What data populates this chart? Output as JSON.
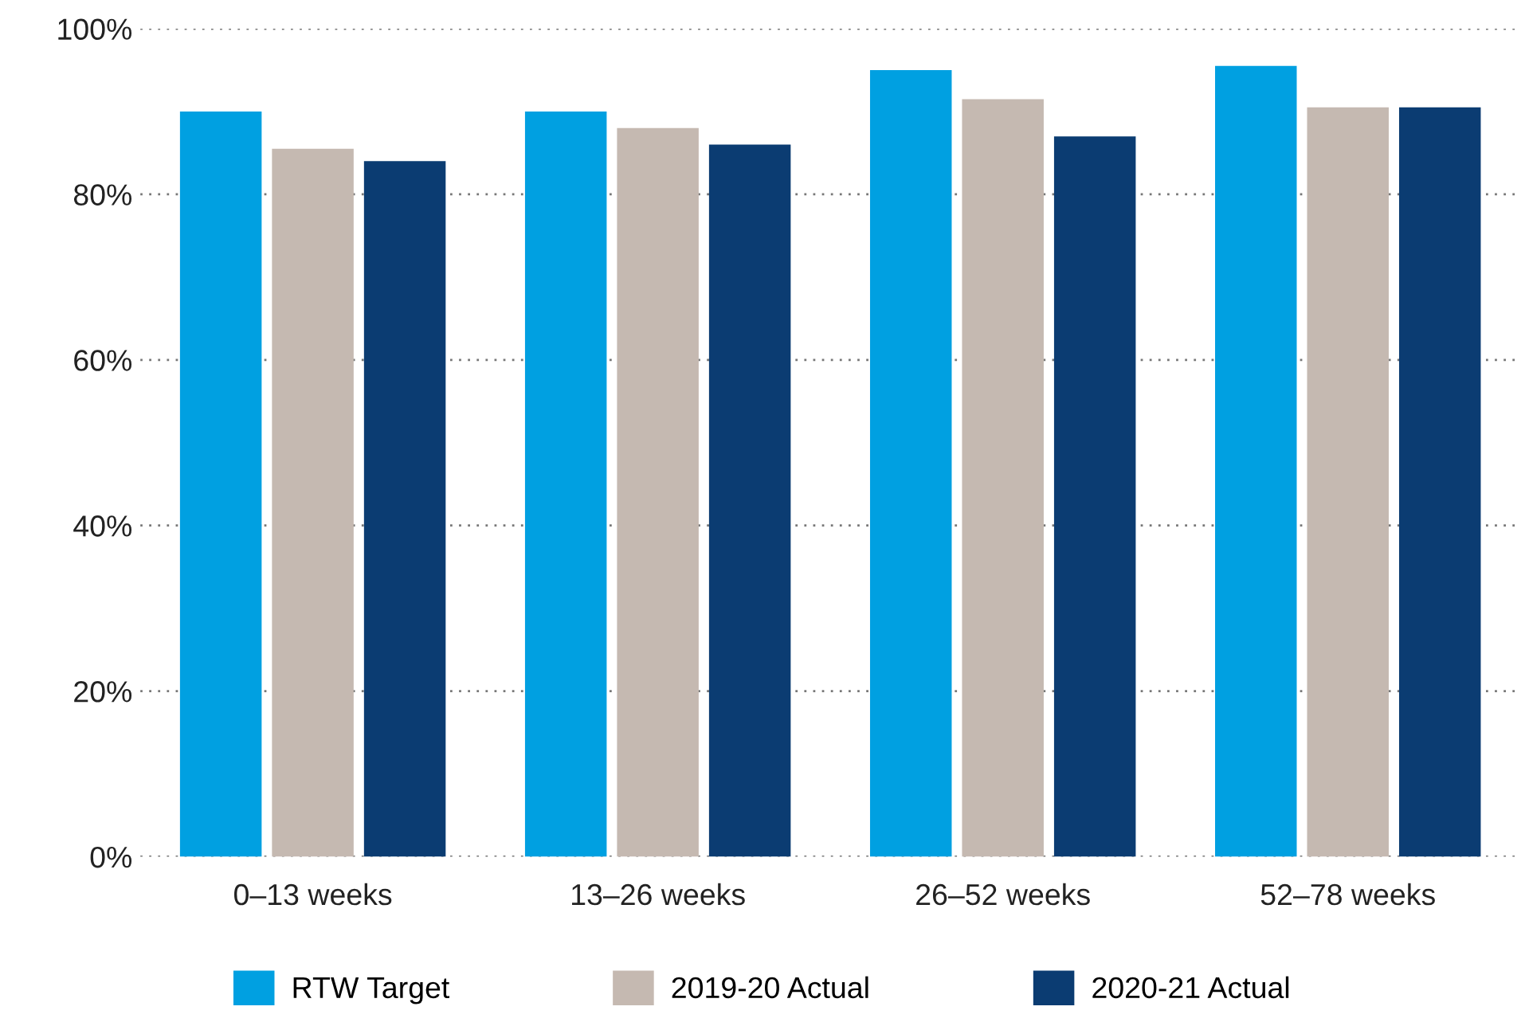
{
  "chart_data": {
    "type": "bar",
    "categories": [
      "0–13 weeks",
      "13–26 weeks",
      "26–52 weeks",
      "52–78 weeks"
    ],
    "series": [
      {
        "name": "RTW Target",
        "color": "#00a0e1",
        "values": [
          90,
          90,
          95,
          95.5
        ]
      },
      {
        "name": "2019-20 Actual",
        "color": "#c5b9b1",
        "values": [
          85.5,
          88,
          91.5,
          90.5
        ]
      },
      {
        "name": "2020-21 Actual",
        "color": "#0b3c72",
        "values": [
          84,
          86,
          87,
          90.5
        ]
      }
    ],
    "ylim": [
      0,
      100
    ],
    "yticks": [
      {
        "value": 0,
        "label": "0%"
      },
      {
        "value": 20,
        "label": "20%"
      },
      {
        "value": 40,
        "label": "40%"
      },
      {
        "value": 60,
        "label": "60%"
      },
      {
        "value": 80,
        "label": "80%"
      },
      {
        "value": 100,
        "label": "100%"
      }
    ],
    "grid": "y",
    "legend": "bottom"
  }
}
